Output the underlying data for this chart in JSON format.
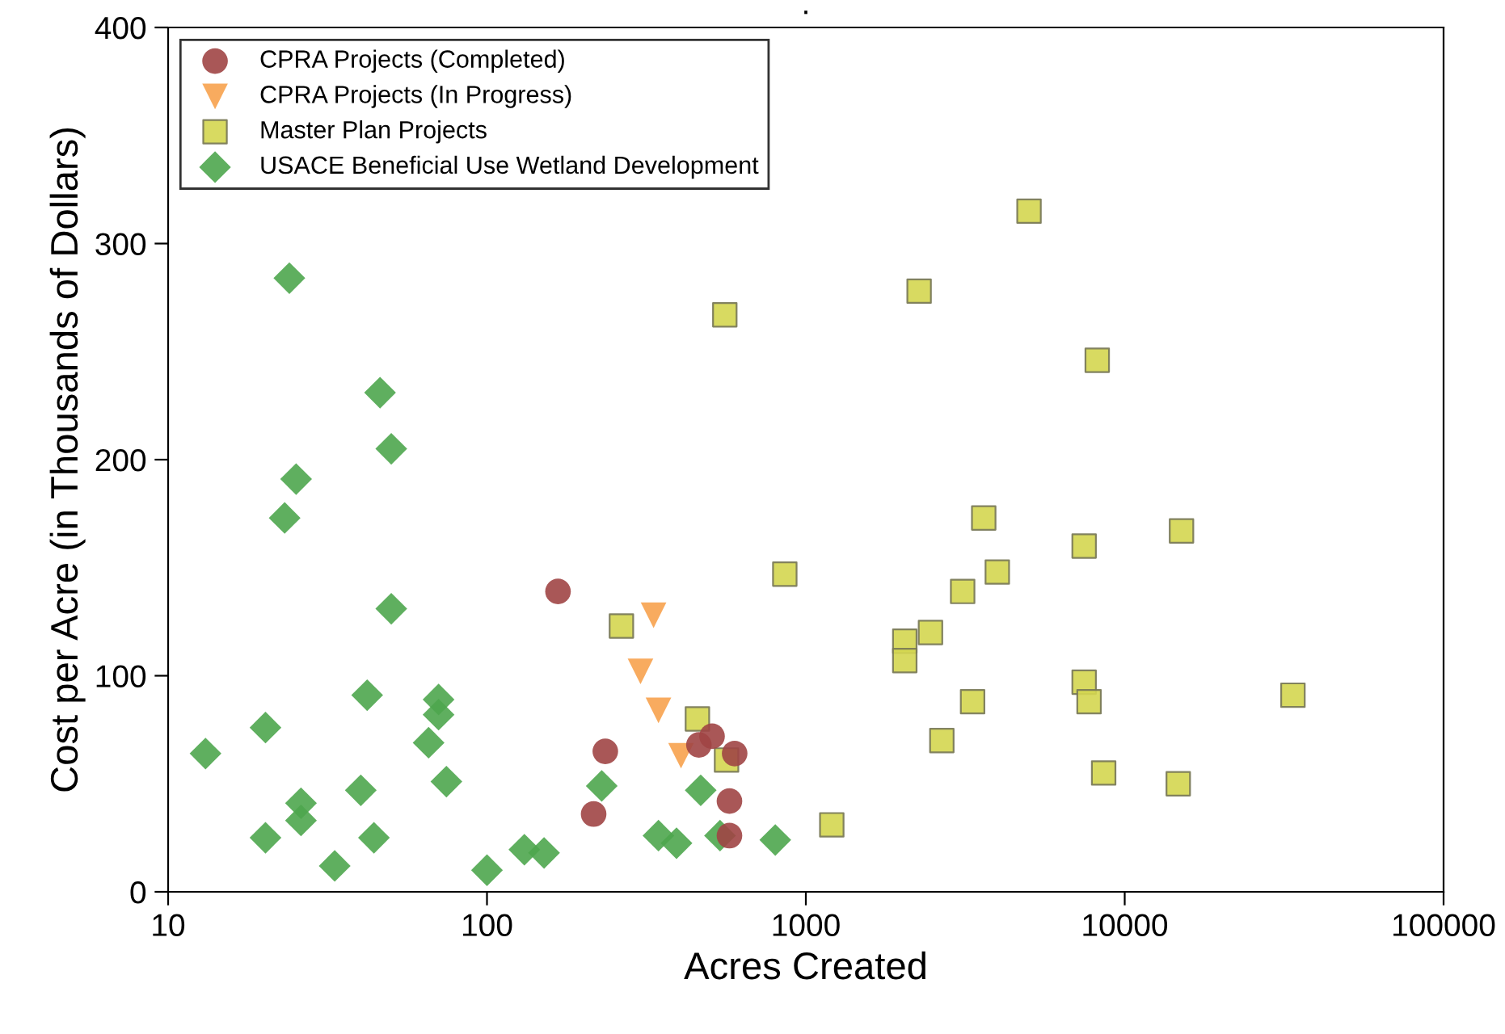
{
  "chart_data": {
    "type": "scatter",
    "title": ".",
    "xlabel": "Acres Created",
    "ylabel": "Cost per Acre (in Thousands of Dollars)",
    "log": "x",
    "xlim": [
      10,
      100000
    ],
    "xticks": [
      10,
      100,
      1000,
      10000,
      100000
    ],
    "ylim": [
      0,
      400
    ],
    "yticks": [
      0,
      100,
      200,
      300,
      400
    ],
    "grid": false,
    "legend": "top left",
    "series": [
      {
        "name": "CPRA Projects (Completed)",
        "color": "#a04545",
        "marker": "circle",
        "x": [
          167,
          235,
          216,
          462,
          508,
          598,
          576,
          576
        ],
        "values": [
          139,
          65,
          36,
          68,
          72,
          64,
          42,
          26
        ]
      },
      {
        "name": "CPRA Projects (In Progress)",
        "color": "#f7a24e",
        "marker": "triangle",
        "x": [
          333,
          303,
          345,
          406
        ],
        "values": [
          128,
          102,
          84,
          63
        ]
      },
      {
        "name": "Master Plan Projects",
        "color": "#d4d650",
        "marker": "square",
        "x": [
          557,
          859,
          264,
          457,
          564,
          5011,
          2266,
          8200,
          3613,
          15070,
          7460,
          3985,
          3103,
          2460,
          2043,
          2043,
          7460,
          7730,
          3334,
          33700,
          2670,
          8590,
          14720,
          1206
        ],
        "values": [
          267,
          147,
          123,
          80,
          61,
          315,
          278,
          246,
          173,
          167,
          160,
          148,
          139,
          120,
          116,
          107,
          97,
          88,
          88,
          91,
          70,
          55,
          50,
          31
        ]
      },
      {
        "name": "USACE Beneficial Use Wetland Development",
        "color": "#4ea64e",
        "marker": "diamond",
        "x": [
          13.1,
          20.2,
          24.0,
          46.2,
          50.1,
          25.2,
          23.2,
          50.1,
          42.1,
          70.5,
          70.5,
          65.6,
          74.6,
          40.2,
          26.1,
          26.1,
          20.2,
          44.2,
          33.3,
          100,
          131,
          151,
          229,
          345,
          393,
          468,
          538,
          802
        ],
        "values": [
          64,
          76,
          284,
          231,
          205,
          191,
          173,
          131,
          91,
          89,
          82,
          69,
          51,
          47,
          41,
          33,
          25,
          25,
          12,
          10,
          19.5,
          18,
          49,
          26,
          22.5,
          47,
          26,
          24
        ]
      }
    ]
  }
}
